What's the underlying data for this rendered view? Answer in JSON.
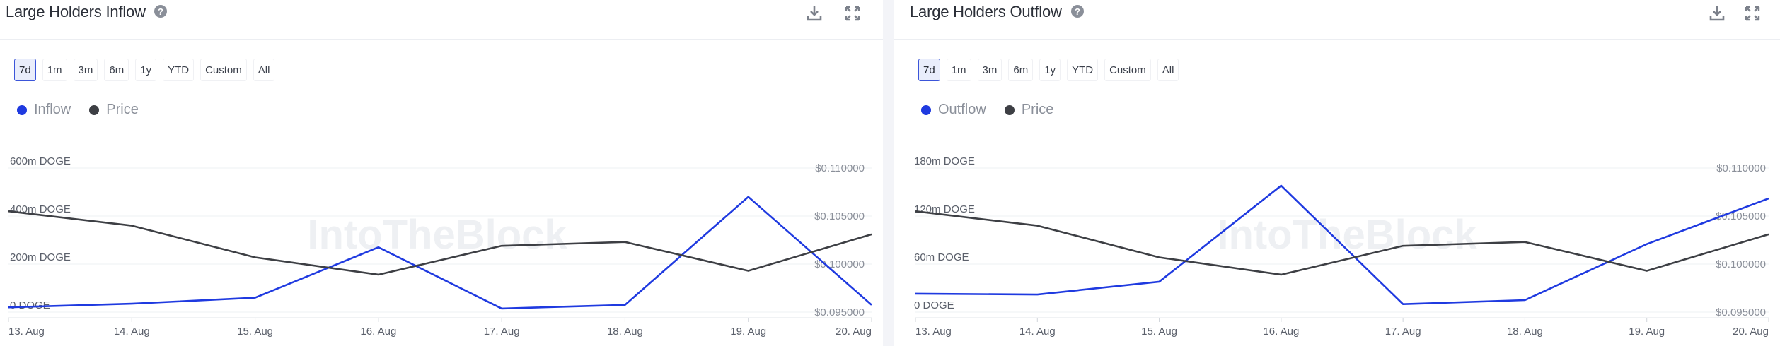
{
  "colors": {
    "primary_series": "#1f3ae0",
    "price_series": "#3d3f44",
    "grid": "#eef0f3",
    "axis_text": "#5b606b",
    "active_button_border": "#3b55d9"
  },
  "watermark": "IntoTheBlock",
  "range_options": [
    "7d",
    "1m",
    "3m",
    "6m",
    "1y",
    "YTD",
    "Custom",
    "All"
  ],
  "active_range": "7d",
  "header_icons": [
    "download-icon",
    "expand-icon"
  ],
  "panels": [
    {
      "title": "Large Holders Inflow",
      "legend": [
        "Inflow",
        "Price"
      ],
      "chart_data": {
        "type": "line",
        "title": "Large Holders Inflow",
        "categories": [
          "13. Aug",
          "14. Aug",
          "15. Aug",
          "16. Aug",
          "17. Aug",
          "18. Aug",
          "19. Aug",
          "20. Aug"
        ],
        "series": [
          {
            "name": "Inflow",
            "axis": "left",
            "values": [
              20,
              35,
              60,
              270,
              15,
              30,
              480,
              30
            ]
          },
          {
            "name": "Price",
            "axis": "right",
            "values": [
              0.1055,
              0.104,
              0.1007,
              0.0989,
              0.1019,
              0.1023,
              0.0993,
              0.1031
            ]
          }
        ],
        "left_axis": {
          "ticks": [
            0,
            200,
            400,
            600
          ],
          "labels": [
            "0 DOGE",
            "200m DOGE",
            "400m DOGE",
            "600m DOGE"
          ],
          "ylim": [
            0,
            600
          ]
        },
        "right_axis": {
          "ticks": [
            0.095,
            0.1,
            0.105,
            0.11
          ],
          "labels": [
            "$0.095000",
            "$0.100000",
            "$0.105000",
            "$0.110000"
          ],
          "ylim": [
            0.095,
            0.11
          ]
        },
        "grid": true,
        "legend_position": "top-left"
      }
    },
    {
      "title": "Large Holders Outflow",
      "legend": [
        "Outflow",
        "Price"
      ],
      "chart_data": {
        "type": "line",
        "title": "Large Holders Outflow",
        "categories": [
          "13. Aug",
          "14. Aug",
          "15. Aug",
          "16. Aug",
          "17. Aug",
          "18. Aug",
          "19. Aug",
          "20. Aug"
        ],
        "series": [
          {
            "name": "Outflow",
            "axis": "left",
            "values": [
              23,
              22,
              38,
              158,
              10,
              15,
              85,
              142
            ]
          },
          {
            "name": "Price",
            "axis": "right",
            "values": [
              0.1055,
              0.104,
              0.1007,
              0.0989,
              0.1019,
              0.1023,
              0.0993,
              0.1031
            ]
          }
        ],
        "left_axis": {
          "ticks": [
            0,
            60,
            120,
            180
          ],
          "labels": [
            "0 DOGE",
            "60m DOGE",
            "120m DOGE",
            "180m DOGE"
          ],
          "ylim": [
            0,
            180
          ]
        },
        "right_axis": {
          "ticks": [
            0.095,
            0.1,
            0.105,
            0.11
          ],
          "labels": [
            "$0.095000",
            "$0.100000",
            "$0.105000",
            "$0.110000"
          ],
          "ylim": [
            0.095,
            0.11
          ]
        },
        "grid": true,
        "legend_position": "top-left"
      }
    }
  ]
}
